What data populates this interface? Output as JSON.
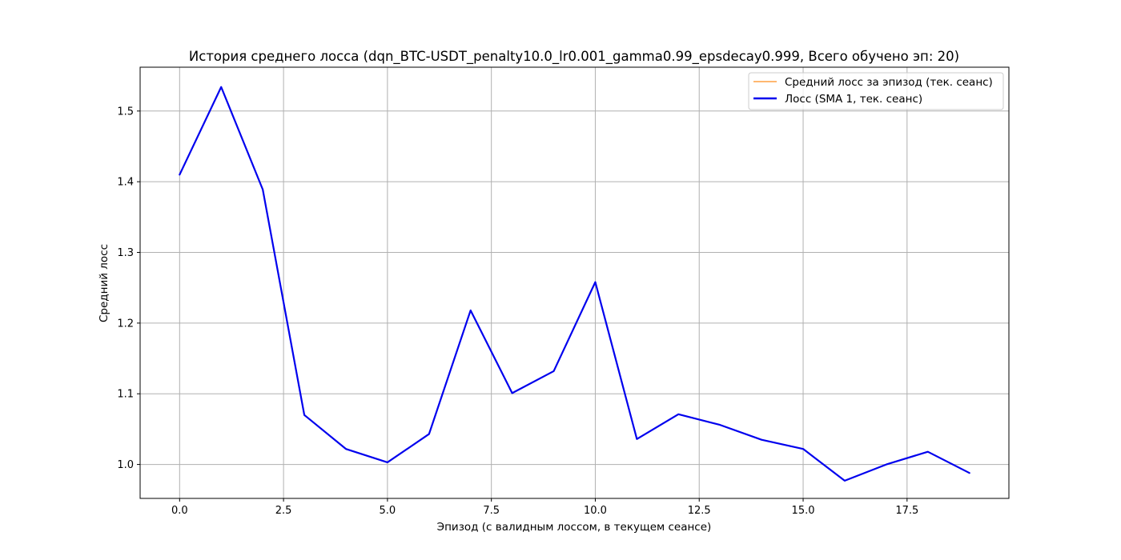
{
  "chart_data": {
    "type": "line",
    "title": "История среднего лосса (dqn_BTC-USDT_penalty10.0_lr0.001_gamma0.99_epsdecay0.999, Всего обучено эп: 20)",
    "xlabel": "Эпизод (с валидным лоссом, в текущем сеансе)",
    "ylabel": "Средний лосс",
    "xlim": [
      -0.95,
      19.95
    ],
    "ylim": [
      0.952,
      1.562
    ],
    "grid": true,
    "legend_position": "top-right",
    "x_ticks": [
      0.0,
      2.5,
      5.0,
      7.5,
      10.0,
      12.5,
      15.0,
      17.5
    ],
    "x_tick_labels": [
      "0.0",
      "2.5",
      "5.0",
      "7.5",
      "10.0",
      "12.5",
      "15.0",
      "17.5"
    ],
    "y_ticks": [
      1.0,
      1.1,
      1.2,
      1.3,
      1.4,
      1.5
    ],
    "y_tick_labels": [
      "1.0",
      "1.1",
      "1.2",
      "1.3",
      "1.4",
      "1.5"
    ],
    "x": [
      0,
      1,
      2,
      3,
      4,
      5,
      6,
      7,
      8,
      9,
      10,
      11,
      12,
      13,
      14,
      15,
      16,
      17,
      18,
      19
    ],
    "series": [
      {
        "name": "Средний лосс за эпизод (тек. сеанс)",
        "color": "#ffa040",
        "values": [
          1.41,
          1.534,
          1.389,
          1.07,
          1.022,
          1.003,
          1.043,
          1.218,
          1.101,
          1.132,
          1.258,
          1.036,
          1.071,
          1.056,
          1.035,
          1.022,
          0.977,
          1.0,
          1.018,
          0.988
        ]
      },
      {
        "name": "Лосс (SMA 1, тек. сеанс)",
        "color": "#0000ee",
        "values": [
          1.41,
          1.534,
          1.389,
          1.07,
          1.022,
          1.003,
          1.043,
          1.218,
          1.101,
          1.132,
          1.258,
          1.036,
          1.071,
          1.056,
          1.035,
          1.022,
          0.977,
          1.0,
          1.018,
          0.988
        ]
      }
    ]
  }
}
